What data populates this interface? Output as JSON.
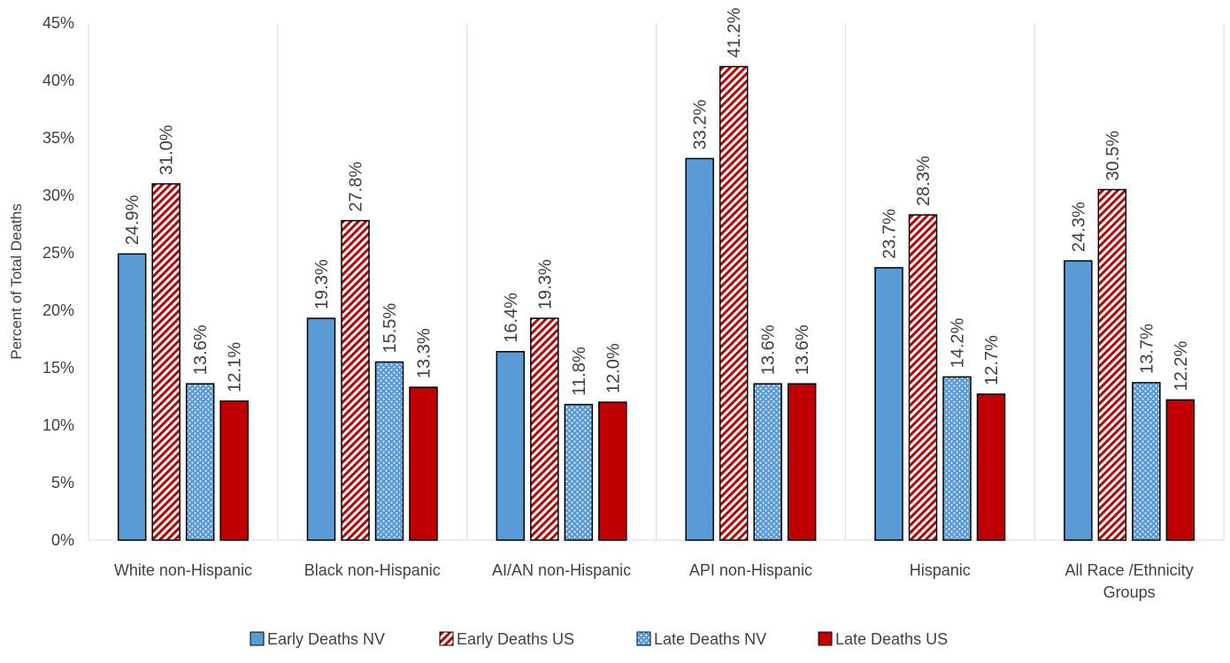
{
  "chart_data": {
    "type": "bar",
    "title": "",
    "xlabel": "",
    "ylabel": "Percent of Total Deaths",
    "ylim": [
      0,
      45
    ],
    "ytick_step": 5,
    "ytick_format": "percent",
    "grid": "vertical-separators",
    "legend_position": "bottom",
    "categories": [
      [
        "White non-Hispanic"
      ],
      [
        "Black non-Hispanic"
      ],
      [
        "AI/AN non-Hispanic"
      ],
      [
        "API non-Hispanic"
      ],
      [
        "Hispanic"
      ],
      [
        "All Race /Ethnicity",
        "Groups"
      ]
    ],
    "series": [
      {
        "name": "Early Deaths NV",
        "values": [
          24.9,
          19.3,
          16.4,
          33.2,
          23.7,
          24.3
        ],
        "color": "#5B9BD5",
        "pattern": "solid"
      },
      {
        "name": "Early Deaths US",
        "values": [
          31.0,
          27.8,
          19.3,
          41.2,
          28.3,
          30.5
        ],
        "color": "#C00000",
        "pattern": "diagonal-stripes"
      },
      {
        "name": "Late Deaths NV",
        "values": [
          13.6,
          15.5,
          11.8,
          13.6,
          14.2,
          13.7
        ],
        "color": "#5B9BD5",
        "pattern": "dots"
      },
      {
        "name": "Late Deaths US",
        "values": [
          12.1,
          13.3,
          12.0,
          13.6,
          12.7,
          12.2
        ],
        "color": "#C00000",
        "pattern": "solid"
      }
    ]
  }
}
